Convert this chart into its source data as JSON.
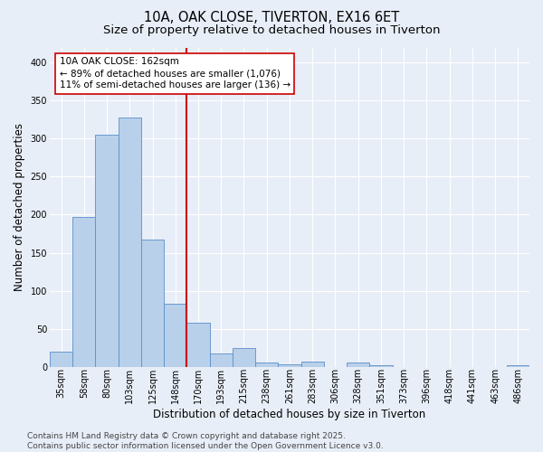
{
  "title": "10A, OAK CLOSE, TIVERTON, EX16 6ET",
  "subtitle": "Size of property relative to detached houses in Tiverton",
  "xlabel": "Distribution of detached houses by size in Tiverton",
  "ylabel": "Number of detached properties",
  "categories": [
    "35sqm",
    "58sqm",
    "80sqm",
    "103sqm",
    "125sqm",
    "148sqm",
    "170sqm",
    "193sqm",
    "215sqm",
    "238sqm",
    "261sqm",
    "283sqm",
    "306sqm",
    "328sqm",
    "351sqm",
    "373sqm",
    "396sqm",
    "418sqm",
    "441sqm",
    "463sqm",
    "486sqm"
  ],
  "values": [
    20,
    197,
    305,
    328,
    167,
    83,
    58,
    18,
    25,
    6,
    3,
    7,
    0,
    5,
    2,
    0,
    0,
    0,
    0,
    0,
    2
  ],
  "bar_color": "#b8d0ea",
  "bar_edge_color": "#5b8fc9",
  "bg_color": "#e8eef8",
  "grid_color": "#ffffff",
  "vline_x": 5.5,
  "vline_color": "#cc0000",
  "annotation_text": "10A OAK CLOSE: 162sqm\n← 89% of detached houses are smaller (1,076)\n11% of semi-detached houses are larger (136) →",
  "annotation_box_color": "#ffffff",
  "annotation_box_edge_color": "#cc0000",
  "ylim": [
    0,
    420
  ],
  "yticks": [
    0,
    50,
    100,
    150,
    200,
    250,
    300,
    350,
    400
  ],
  "footer": "Contains HM Land Registry data © Crown copyright and database right 2025.\nContains public sector information licensed under the Open Government Licence v3.0.",
  "title_fontsize": 10.5,
  "subtitle_fontsize": 9.5,
  "xlabel_fontsize": 8.5,
  "ylabel_fontsize": 8.5,
  "tick_fontsize": 7,
  "annotation_fontsize": 7.5,
  "footer_fontsize": 6.5
}
